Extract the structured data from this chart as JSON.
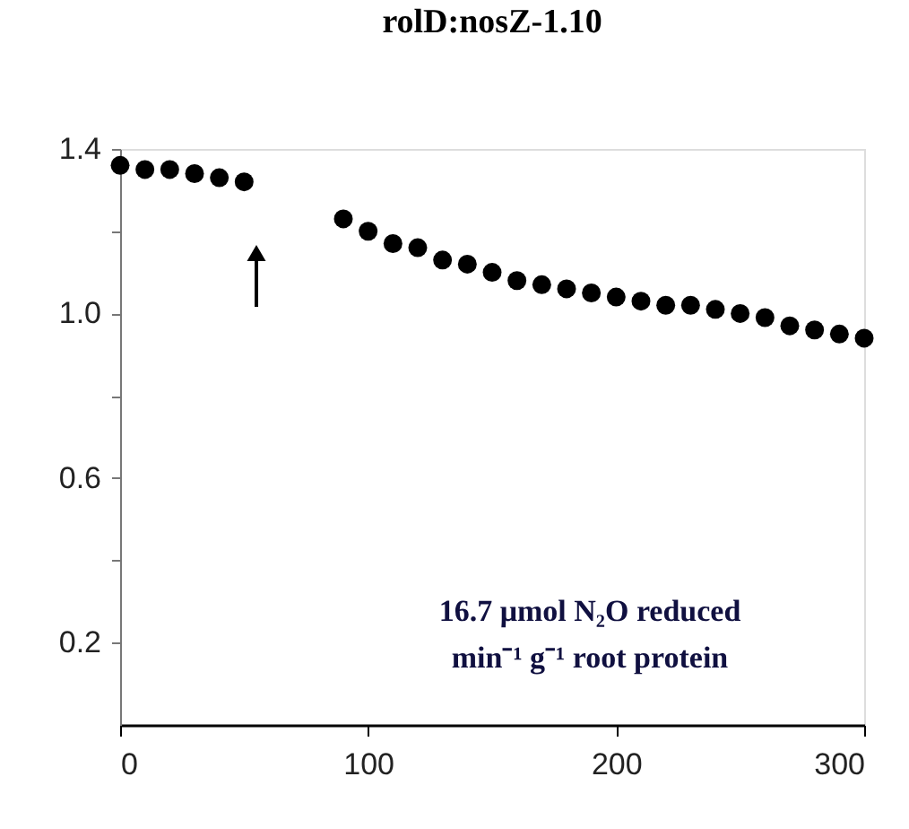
{
  "chart_data": {
    "type": "scatter",
    "title": "rolD:nosZ-1.10",
    "x": [
      0,
      10,
      20,
      30,
      40,
      50,
      90,
      100,
      110,
      120,
      130,
      140,
      150,
      160,
      170,
      180,
      190,
      200,
      210,
      220,
      230,
      240,
      250,
      260,
      270,
      280,
      290,
      300
    ],
    "series": [
      {
        "color": "#000000",
        "values": [
          1.36,
          1.35,
          1.35,
          1.34,
          1.33,
          1.32,
          1.23,
          1.2,
          1.17,
          1.16,
          1.13,
          1.12,
          1.1,
          1.08,
          1.07,
          1.06,
          1.05,
          1.04,
          1.03,
          1.02,
          1.02,
          1.01,
          1.0,
          0.99,
          0.97,
          0.96,
          0.95,
          0.94
        ]
      }
    ],
    "xlim": [
      0,
      300
    ],
    "xticks": [
      0,
      100,
      200,
      300
    ],
    "ylim": [
      0,
      1.4
    ],
    "yticks": [
      {
        "value": 0.2,
        "label": "0.2"
      },
      {
        "value": 0.4,
        "label": null
      },
      {
        "value": 0.6,
        "label": "0.6"
      },
      {
        "value": 0.8,
        "label": null
      },
      {
        "value": 1.0,
        "label": "1.0"
      },
      {
        "value": 1.2,
        "label": null
      },
      {
        "value": 1.4,
        "label": "1.4"
      }
    ],
    "annotations": [
      "16.7 μmol N₂O reduced\nmin⁻¹ g⁻¹ root protein"
    ],
    "marker": "circle",
    "grid": false
  }
}
